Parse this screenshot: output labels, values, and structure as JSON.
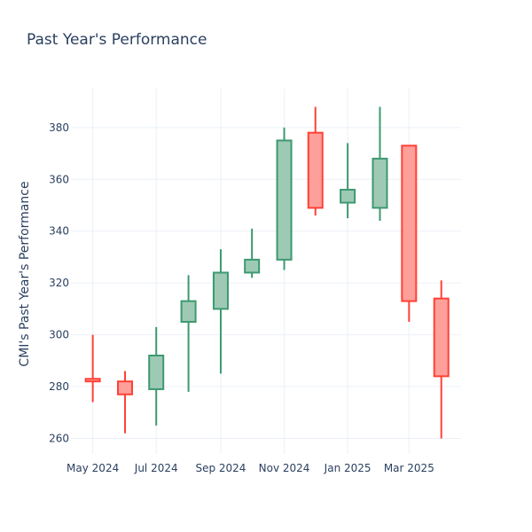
{
  "chart_data": {
    "type": "candlestick",
    "title": "Past Year's Performance",
    "xlabel": "",
    "ylabel": "CMI's Past Year's Performance",
    "ylim": [
      254,
      395
    ],
    "yticks": [
      260,
      280,
      300,
      320,
      340,
      360,
      380
    ],
    "x_ticks": [
      {
        "label": "May 2024",
        "value": "2024-05-01"
      },
      {
        "label": "Jul 2024",
        "value": "2024-07-01"
      },
      {
        "label": "Sep 2024",
        "value": "2024-09-01"
      },
      {
        "label": "Nov 2024",
        "value": "2024-11-01"
      },
      {
        "label": "Jan 2025",
        "value": "2025-01-01"
      },
      {
        "label": "Mar 2025",
        "value": "2025-03-01"
      }
    ],
    "x_range": [
      "2024-04-10",
      "2025-04-20"
    ],
    "increasing_color": "#3d9970",
    "increasing_fill": "#9ecab5",
    "decreasing_color": "#ff4136",
    "decreasing_fill": "#ff9f9a",
    "candles": [
      {
        "date": "2024-05-01",
        "open": 283,
        "high": 300,
        "low": 274,
        "close": 282
      },
      {
        "date": "2024-06-01",
        "open": 282,
        "high": 286,
        "low": 262,
        "close": 277
      },
      {
        "date": "2024-07-01",
        "open": 279,
        "high": 303,
        "low": 265,
        "close": 292
      },
      {
        "date": "2024-08-01",
        "open": 305,
        "high": 323,
        "low": 278,
        "close": 313
      },
      {
        "date": "2024-09-01",
        "open": 310,
        "high": 333,
        "low": 285,
        "close": 324
      },
      {
        "date": "2024-10-01",
        "open": 324,
        "high": 341,
        "low": 322,
        "close": 329
      },
      {
        "date": "2024-11-01",
        "open": 329,
        "high": 380,
        "low": 325,
        "close": 375
      },
      {
        "date": "2024-12-01",
        "open": 378,
        "high": 388,
        "low": 346,
        "close": 349
      },
      {
        "date": "2025-01-01",
        "open": 351,
        "high": 374,
        "low": 345,
        "close": 356
      },
      {
        "date": "2025-02-01",
        "open": 349,
        "high": 388,
        "low": 344,
        "close": 368
      },
      {
        "date": "2025-03-01",
        "open": 373,
        "high": 373,
        "low": 305,
        "close": 313
      },
      {
        "date": "2025-04-01",
        "open": 314,
        "high": 321,
        "low": 260,
        "close": 284
      }
    ]
  }
}
